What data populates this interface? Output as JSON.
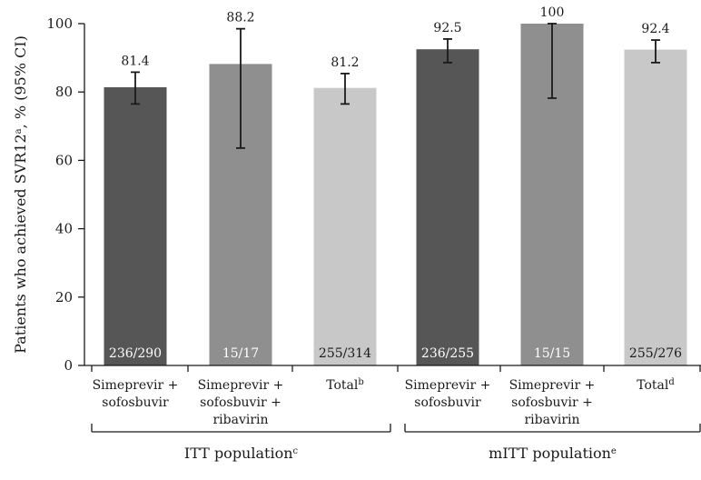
{
  "chart_data": {
    "type": "bar",
    "ylabel": "Patients who achieved SVR12",
    "ylabel_sup": "a",
    "ylabel_suffix": ", % (95% CI)",
    "ylim": [
      0,
      100
    ],
    "yticks": [
      "0",
      "20",
      "40",
      "60",
      "80",
      "100"
    ],
    "grid": false,
    "bars": [
      {
        "lines": [
          "Simeprevir +",
          "sofosbuvir"
        ],
        "sup": "",
        "value": 81.4,
        "value_label": "81.4",
        "ci": [
          76.5,
          85.8
        ],
        "count_label": "236/290",
        "color": "#565656",
        "count_color": "#ffffff"
      },
      {
        "lines": [
          "Simeprevir +",
          "sofosbuvir +",
          "ribavirin"
        ],
        "sup": "",
        "value": 88.2,
        "value_label": "88.2",
        "ci": [
          63.6,
          98.5
        ],
        "count_label": "15/17",
        "color": "#8f8f8f",
        "count_color": "#ffffff"
      },
      {
        "lines": [
          "Total"
        ],
        "sup": "b",
        "value": 81.2,
        "value_label": "81.2",
        "ci": [
          76.5,
          85.4
        ],
        "count_label": "255/314",
        "color": "#c8c8c8",
        "count_color": "#1a1a1a"
      },
      {
        "lines": [
          "Simeprevir +",
          "sofosbuvir"
        ],
        "sup": "",
        "value": 92.5,
        "value_label": "92.5",
        "ci": [
          88.6,
          95.5
        ],
        "count_label": "236/255",
        "color": "#565656",
        "count_color": "#ffffff"
      },
      {
        "lines": [
          "Simeprevir +",
          "sofosbuvir +",
          "ribavirin"
        ],
        "sup": "",
        "value": 100,
        "value_label": "100",
        "ci": [
          78.2,
          100
        ],
        "count_label": "15/15",
        "color": "#8f8f8f",
        "count_color": "#ffffff"
      },
      {
        "lines": [
          "Total"
        ],
        "sup": "d",
        "value": 92.4,
        "value_label": "92.4",
        "ci": [
          88.6,
          95.2
        ],
        "count_label": "255/276",
        "color": "#c8c8c8",
        "count_color": "#1a1a1a"
      }
    ],
    "groups": [
      {
        "label": "ITT population",
        "sup": "c",
        "bars": [
          0,
          1,
          2
        ]
      },
      {
        "label": "mITT population",
        "sup": "e",
        "bars": [
          3,
          4,
          5
        ]
      }
    ]
  }
}
